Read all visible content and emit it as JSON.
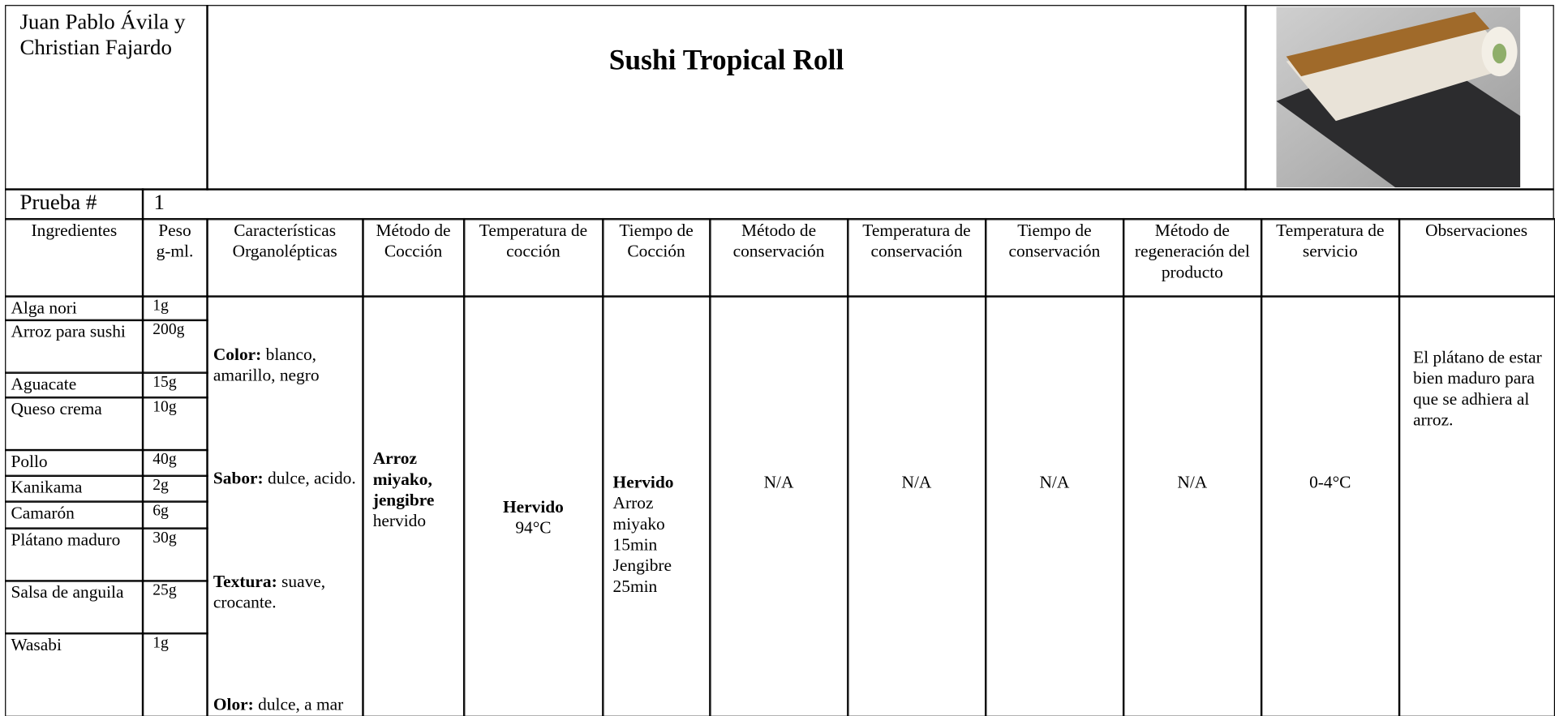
{
  "header": {
    "author": "Juan Pablo Ávila y Christian Fajardo",
    "title": "Sushi Tropical Roll"
  },
  "test": {
    "label": "Prueba #",
    "number": "1"
  },
  "columns": [
    "Ingredientes",
    "Peso g-ml.",
    "Características Organolépticas",
    "Método de Cocción",
    "Temperatura de cocción",
    "Tiempo de Cocción",
    "Método de conservación",
    "Temperatura de conservación",
    "Tiempo de conservación",
    "Método de regeneración del producto",
    "Temperatura de servicio",
    "Observaciones"
  ],
  "ingredients": [
    [
      "Alga nori",
      "1g"
    ],
    [
      "Arroz para sushi",
      "200g"
    ],
    [
      "Aguacate",
      "15g"
    ],
    [
      "Queso crema",
      "10g"
    ],
    [
      "Pollo",
      "40g"
    ],
    [
      "Kanikama",
      "2g"
    ],
    [
      "Camarón",
      "6g"
    ],
    [
      "Plátano maduro",
      "30g"
    ],
    [
      "Salsa de anguila",
      "25g"
    ],
    [
      "Wasabi",
      "1g"
    ]
  ],
  "characteristics": [
    {
      "label": "Color:",
      "text": "blanco, amarillo, negro"
    },
    {
      "label": "Sabor:",
      "text": "dulce, acido."
    },
    {
      "label": "Textura:",
      "text": "suave, crocante."
    },
    {
      "label": "Olor:",
      "text": "dulce, a mar"
    }
  ],
  "cooking_method": {
    "bold": "Arroz miyako, jengibre",
    "text": "hervido"
  },
  "cooking_temperature": {
    "bold": "Hervido",
    "text": "94°C"
  },
  "cooking_time": {
    "bold": "Hervido",
    "text": "Arroz miyako 15min Jengibre 25min"
  },
  "conservation_method": "N/A",
  "conservation_temperature": "N/A",
  "conservation_time": "N/A",
  "regeneration_method": "N/A",
  "service_temperature": "0-4°C",
  "observations": "El plátano de estar bien maduro para que se adhiera al arroz."
}
